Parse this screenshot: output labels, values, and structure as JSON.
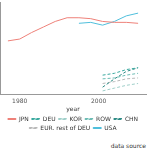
{
  "chart_data": {
    "type": "line",
    "x_label": "year",
    "x": [
      1977,
      1980,
      1983,
      1986,
      1989,
      1992,
      1995,
      1998,
      2001,
      2004,
      2007,
      2010
    ],
    "xlim": [
      1975,
      2012
    ],
    "xticks": [
      1980,
      2000
    ],
    "ylim": [
      0,
      100
    ],
    "tick_labels": "x",
    "grid": false,
    "legend": "bottom",
    "annotations": [
      "data source"
    ],
    "series": [
      {
        "name": "JPN",
        "color": "#ee8179",
        "line_style": "solid",
        "values": [
          58,
          60,
          67,
          73,
          79,
          83,
          83,
          82,
          79,
          78,
          78,
          77
        ]
      },
      {
        "name": "DEU",
        "color": "#3aa99f",
        "line_style": "dashed",
        "values": [
          null,
          null,
          null,
          null,
          null,
          null,
          null,
          null,
          21,
          23,
          27,
          29
        ]
      },
      {
        "name": "KOR",
        "color": "#9fcfc9",
        "line_style": "dashed",
        "values": [
          null,
          null,
          null,
          null,
          null,
          null,
          null,
          null,
          4,
          7,
          10,
          12
        ]
      },
      {
        "name": "ROW",
        "color": "#6cbcb4",
        "line_style": "dashed",
        "values": [
          null,
          null,
          null,
          null,
          null,
          null,
          null,
          null,
          17,
          18,
          21,
          23
        ]
      },
      {
        "name": "CHN",
        "color": "#2e8b85",
        "line_style": "dashed",
        "values": [
          null,
          null,
          null,
          null,
          null,
          null,
          null,
          null,
          8,
          17,
          25,
          29
        ]
      },
      {
        "name": "EUR. rest of DEU",
        "color": "#b8b8b8",
        "line_style": "dashed",
        "values": [
          null,
          null,
          null,
          null,
          null,
          null,
          null,
          null,
          12,
          14,
          17,
          18
        ]
      },
      {
        "name": "USA",
        "color": "#4fbfdc",
        "line_style": "solid",
        "values": [
          null,
          null,
          null,
          null,
          null,
          null,
          77,
          78,
          75,
          79,
          85,
          88
        ]
      }
    ]
  }
}
